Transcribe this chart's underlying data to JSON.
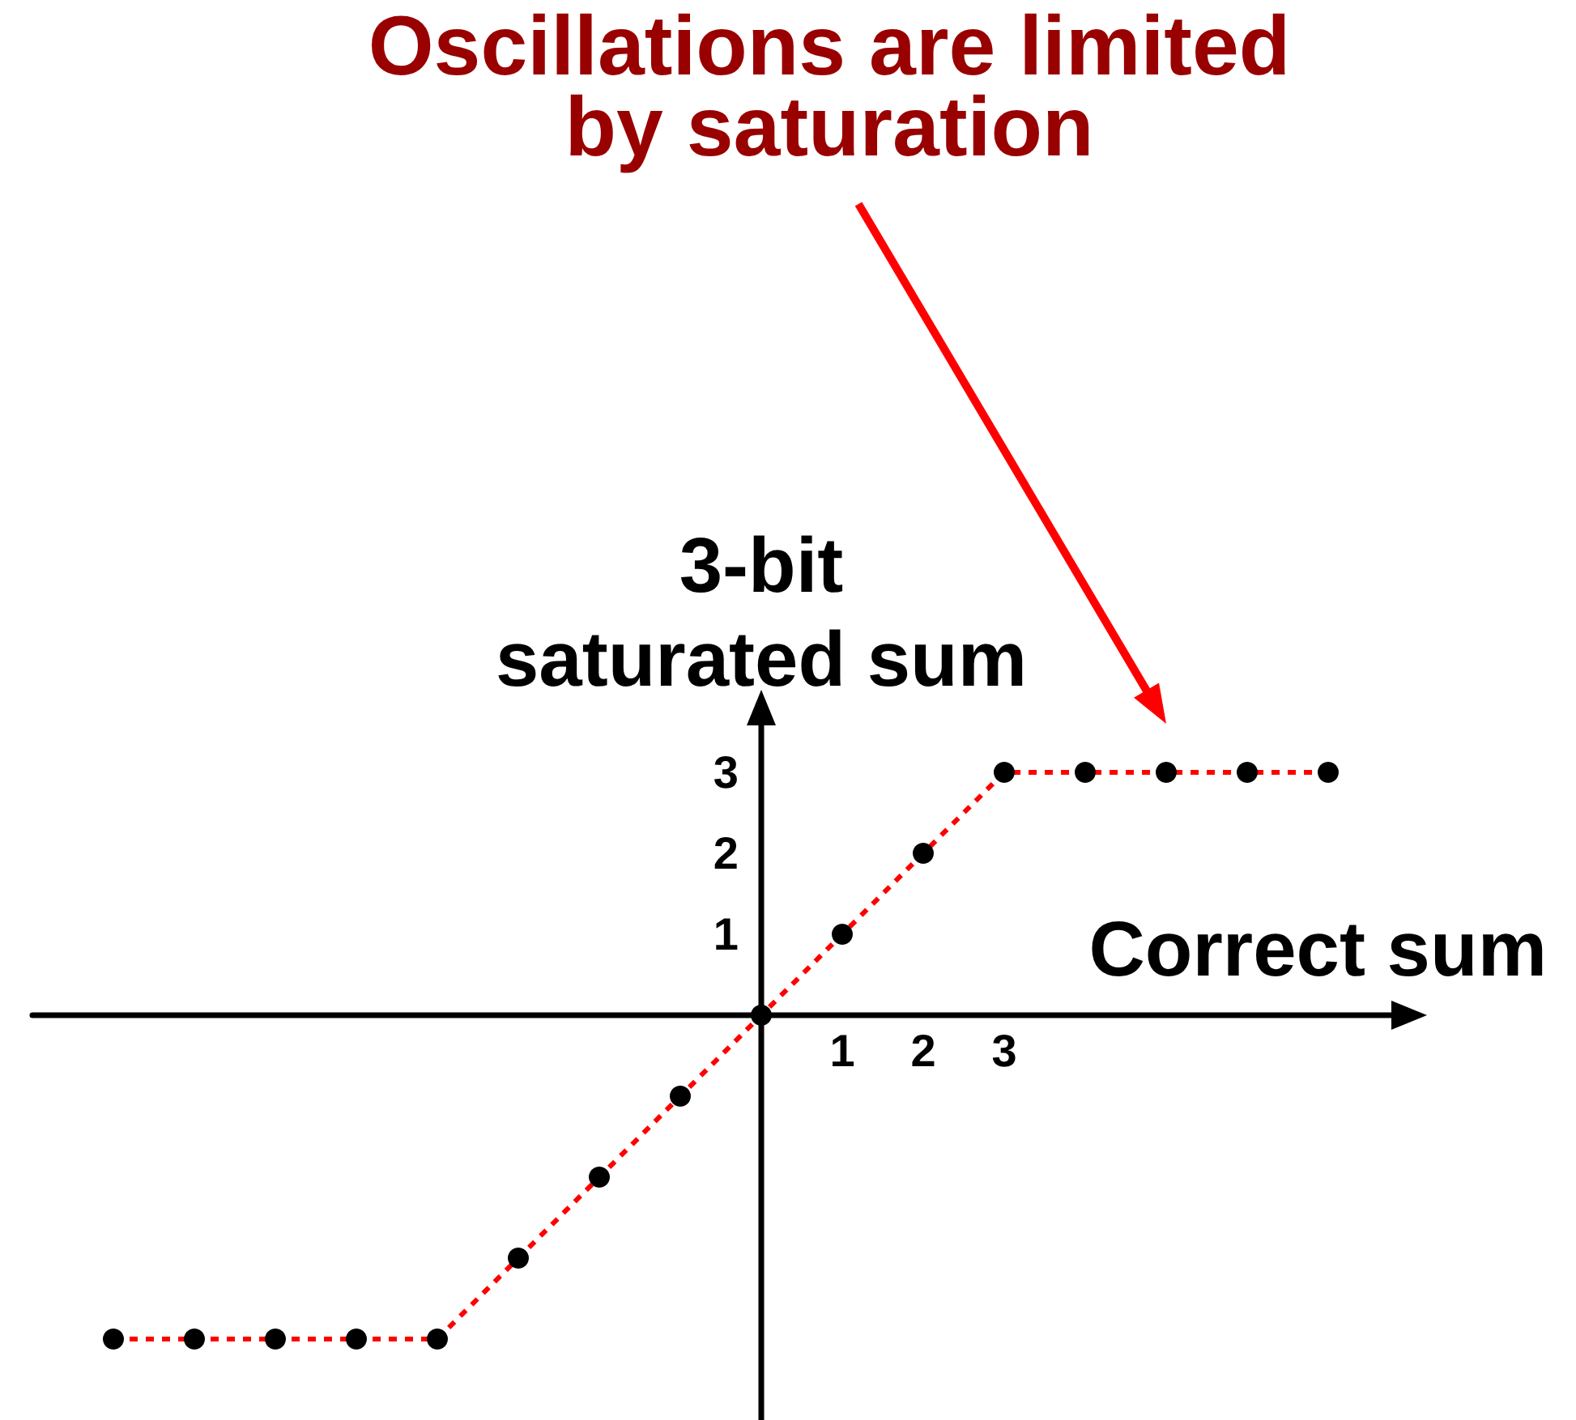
{
  "chart_data": {
    "type": "line",
    "xlabel": "Correct sum",
    "ylabel": "3-bit\nsaturated sum",
    "annotations": [
      "Oscillations are limited by saturation"
    ],
    "x": [
      -8,
      -7,
      -6,
      -5,
      -4,
      -3,
      -2,
      -1,
      0,
      1,
      2,
      3,
      4,
      5,
      6,
      7
    ],
    "series": [
      {
        "color": "#ff0000",
        "marker": "none",
        "values": [
          -4,
          -4,
          -4,
          -4,
          -4,
          -3,
          -2,
          -1,
          0,
          1,
          2,
          3,
          3,
          3,
          3,
          3
        ]
      },
      {
        "type": "scatter",
        "color": "#000000",
        "values": [
          -4,
          -4,
          -4,
          -4,
          -4,
          -3,
          -2,
          -1,
          0,
          1,
          2,
          3,
          3,
          3,
          3,
          3
        ]
      }
    ],
    "xlim": [
      -9,
      8
    ],
    "ylim": [
      -5,
      3.8
    ],
    "xticks": [
      1,
      2,
      3
    ],
    "yticks": [
      1,
      2,
      3
    ],
    "marker": "circle",
    "line_style": "dashed"
  }
}
